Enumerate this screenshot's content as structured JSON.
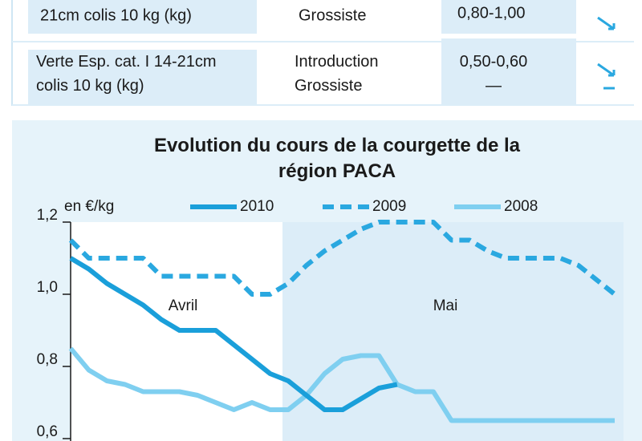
{
  "table": {
    "rows": [
      [
        "21cm colis 10 kg (kg)",
        "Grossiste",
        "0,80-1,00"
      ],
      [
        "Verte Esp. cat. I 14-21cm colis 10 kg (kg)",
        "Introduction Grossiste",
        "0,50-0,60 —"
      ]
    ]
  },
  "chart_data": {
    "type": "line",
    "title": "Evolution du cours de la courgette de la région PACA",
    "y_label": "en €/kg",
    "annotations": [
      "Avril",
      "Mai"
    ],
    "x": [
      0,
      1,
      2,
      3,
      4,
      5,
      6,
      7,
      8,
      9,
      10,
      11,
      12,
      13,
      14,
      15,
      16,
      17,
      18,
      19,
      20,
      21,
      22,
      23,
      24,
      25,
      26,
      27,
      28,
      29,
      30
    ],
    "xlim": [
      0,
      30
    ],
    "ylim": [
      0.6,
      1.2
    ],
    "yticks": [
      {
        "value": 0.6,
        "label": "0,6"
      },
      {
        "value": 0.8,
        "label": "0,8"
      },
      {
        "value": 1.0,
        "label": "1,0"
      },
      {
        "value": 1.2,
        "label": "1,2"
      }
    ],
    "series": [
      {
        "name": "2010",
        "color": "#1a9fda",
        "values": [
          1.1,
          1.07,
          1.03,
          1.0,
          0.97,
          0.93,
          0.9,
          0.9,
          0.9,
          0.86,
          0.82,
          0.78,
          0.76,
          0.72,
          0.68,
          0.68,
          0.71,
          0.74,
          0.75,
          null,
          null,
          null,
          null,
          null,
          null,
          null,
          null,
          null,
          null,
          null,
          null
        ]
      },
      {
        "name": "2009",
        "color": "#2aa8e0",
        "values": [
          1.15,
          1.1,
          1.1,
          1.1,
          1.1,
          1.05,
          1.05,
          1.05,
          1.05,
          1.05,
          1.0,
          1.0,
          1.03,
          1.08,
          1.12,
          1.15,
          1.18,
          1.2,
          1.2,
          1.2,
          1.2,
          1.15,
          1.15,
          1.12,
          1.1,
          1.1,
          1.1,
          1.1,
          1.08,
          1.04,
          1.0
        ]
      },
      {
        "name": "2008",
        "color": "#7fcff0",
        "values": [
          0.85,
          0.79,
          0.76,
          0.75,
          0.73,
          0.73,
          0.73,
          0.72,
          0.7,
          0.68,
          0.7,
          0.68,
          0.68,
          0.72,
          0.78,
          0.82,
          0.83,
          0.83,
          0.75,
          0.73,
          0.73,
          0.65,
          0.65,
          0.65,
          0.65,
          0.65,
          0.65,
          0.65,
          0.65,
          0.65,
          0.65
        ]
      }
    ]
  }
}
